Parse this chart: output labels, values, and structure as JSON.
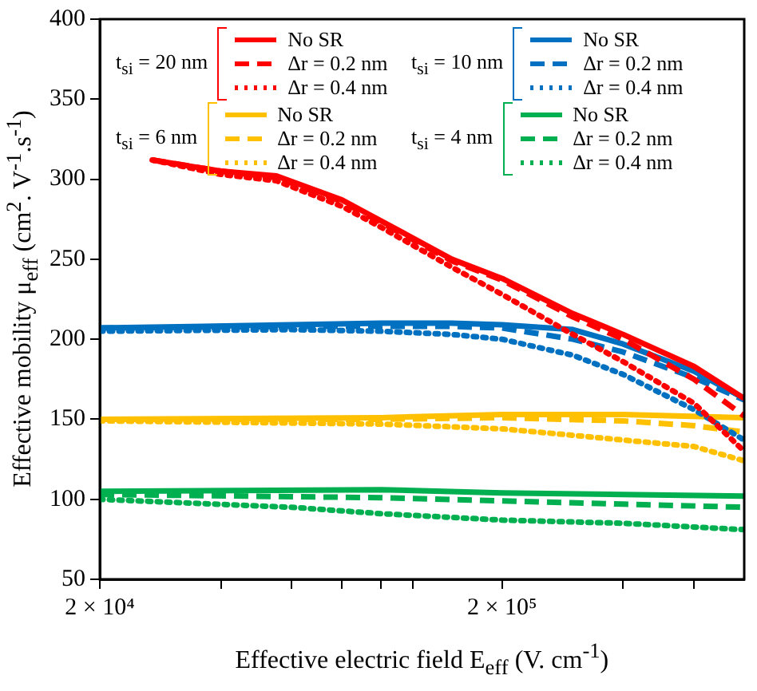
{
  "chart_data": {
    "type": "line",
    "xlabel": "Effective electric field E$_{eff}$ (V. cm$^{-1}$)",
    "ylabel": "Effective mobility μ$_{eff}$ (cm$^{2}$. V$^{-1}$.s$^{-1}$)",
    "log": "x",
    "xlim": [
      20000,
      800000
    ],
    "ylim": [
      50,
      400
    ],
    "xticks": [
      {
        "value": 20000,
        "label": "2 × 10⁴"
      },
      {
        "value": 40000,
        "label": null
      },
      {
        "value": 60000,
        "label": null
      },
      {
        "value": 80000,
        "label": null
      },
      {
        "value": 100000,
        "label": null
      },
      {
        "value": 120000,
        "label": null
      },
      {
        "value": 200000,
        "label": "2 × 10⁵"
      },
      {
        "value": 400000,
        "label": null
      },
      {
        "value": 600000,
        "label": null
      }
    ],
    "yticks": [
      50,
      100,
      150,
      200,
      250,
      300,
      350,
      400
    ],
    "grid": false,
    "legend": "top",
    "marker": "none",
    "annotations": [
      "t$_{si}$ = 20 nm",
      "t$_{si}$ = 10 nm",
      "t$_{si}$ = 6 nm",
      "t$_{si}$ = 4 nm"
    ],
    "series": [
      {
        "name": "No SR",
        "color": "#ff0000",
        "line_style": "solid",
        "x": [
          27000,
          40000,
          55000,
          80000,
          100000,
          150000,
          200000,
          300000,
          400000,
          600000,
          800000
        ],
        "values": [
          312,
          305,
          302,
          287,
          274,
          250,
          238,
          216,
          203,
          183,
          163
        ]
      },
      {
        "name": "Δr = 0.2 nm",
        "color": "#ff0000",
        "line_style": "dashed",
        "x": [
          27000,
          40000,
          55000,
          80000,
          100000,
          150000,
          200000,
          300000,
          400000,
          600000,
          800000
        ],
        "values": [
          312,
          305,
          301,
          286,
          273,
          249,
          237,
          214,
          200,
          175,
          152
        ]
      },
      {
        "name": "Δr = 0.4 nm",
        "color": "#ff0000",
        "line_style": "dotted",
        "x": [
          27000,
          40000,
          55000,
          80000,
          100000,
          150000,
          200000,
          300000,
          400000,
          600000,
          800000
        ],
        "values": [
          312,
          303,
          299,
          283,
          270,
          245,
          228,
          203,
          186,
          160,
          130
        ]
      },
      {
        "name": "No SR",
        "color": "#0070c0",
        "line_style": "solid",
        "x": [
          20000,
          60000,
          100000,
          150000,
          200000,
          300000,
          400000,
          600000,
          800000
        ],
        "values": [
          207,
          209,
          210,
          210,
          209,
          206,
          197,
          180,
          163
        ]
      },
      {
        "name": "Δr = 0.2 nm",
        "color": "#0070c0",
        "line_style": "dashed",
        "x": [
          20000,
          60000,
          100000,
          150000,
          200000,
          300000,
          400000,
          600000,
          800000
        ],
        "values": [
          207,
          208,
          208,
          208,
          207,
          200,
          192,
          176,
          162
        ]
      },
      {
        "name": "Δr = 0.4 nm",
        "color": "#0070c0",
        "line_style": "dotted",
        "x": [
          20000,
          60000,
          100000,
          150000,
          200000,
          300000,
          400000,
          600000,
          800000
        ],
        "values": [
          205,
          206,
          205,
          203,
          200,
          190,
          178,
          156,
          137
        ]
      },
      {
        "name": "No SR",
        "color": "#ffc000",
        "line_style": "solid",
        "x": [
          20000,
          100000,
          200000,
          400000,
          800000
        ],
        "values": [
          150,
          151,
          153,
          153,
          151
        ]
      },
      {
        "name": "Δr = 0.2 nm",
        "color": "#ffc000",
        "line_style": "dashed",
        "x": [
          20000,
          100000,
          200000,
          400000,
          600000,
          800000
        ],
        "values": [
          150,
          150,
          151,
          149,
          146,
          142
        ]
      },
      {
        "name": "Δr = 0.4 nm",
        "color": "#ffc000",
        "line_style": "dotted",
        "x": [
          20000,
          100000,
          200000,
          300000,
          400000,
          600000,
          800000
        ],
        "values": [
          149,
          147,
          144,
          140,
          137,
          133,
          124
        ]
      },
      {
        "name": "No SR",
        "color": "#00b050",
        "line_style": "solid",
        "x": [
          20000,
          100000,
          200000,
          400000,
          800000
        ],
        "values": [
          105,
          106,
          104,
          103,
          102
        ]
      },
      {
        "name": "Δr = 0.2 nm",
        "color": "#00b050",
        "line_style": "dashed",
        "x": [
          20000,
          100000,
          200000,
          400000,
          800000
        ],
        "values": [
          103,
          101,
          99,
          97,
          95
        ]
      },
      {
        "name": "Δr = 0.4 nm",
        "color": "#00b050",
        "line_style": "dotted",
        "x": [
          20000,
          60000,
          100000,
          200000,
          400000,
          800000
        ],
        "values": [
          100,
          95,
          91,
          87,
          85,
          81
        ]
      }
    ]
  }
}
